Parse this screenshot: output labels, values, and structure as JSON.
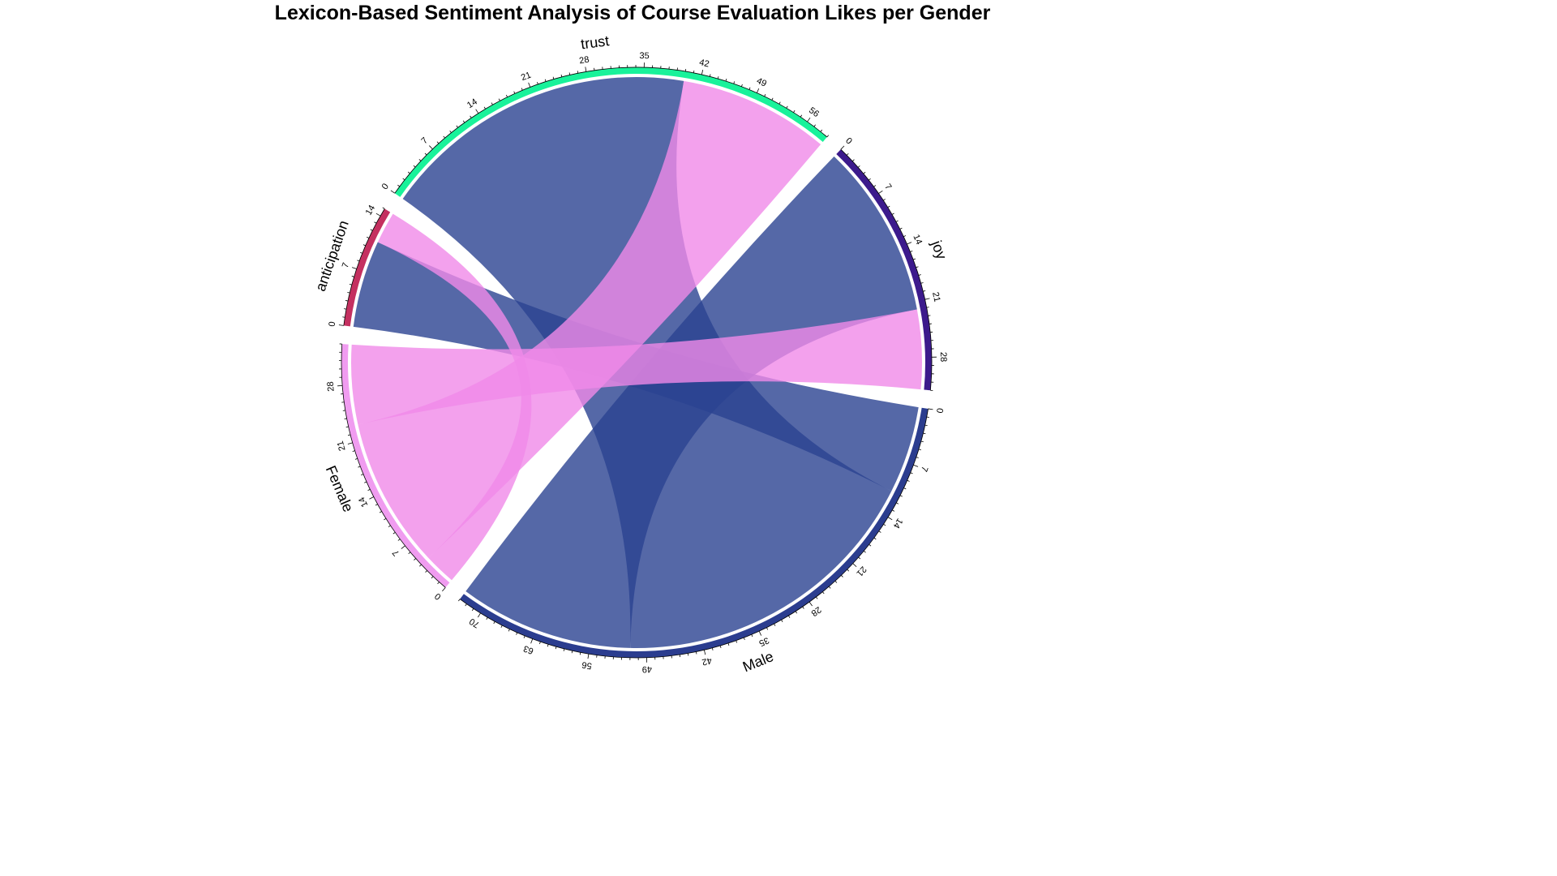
{
  "chart_data": {
    "type": "chord",
    "title": "Lexicon-Based Sentiment Analysis of Course Evaluation Likes per Gender",
    "sectors": [
      {
        "name": "Male",
        "total": 73,
        "color": "#2b3d8f",
        "tick_step": 7
      },
      {
        "name": "Female",
        "total": 33,
        "color": "#f09cf0",
        "tick_step": 7
      },
      {
        "name": "anticipation",
        "total": 15,
        "color": "#c43060",
        "tick_step": 7
      },
      {
        "name": "trust",
        "total": 59,
        "color": "#19f29a",
        "tick_step": 7
      },
      {
        "name": "joy",
        "total": 32,
        "color": "#3c1a8c",
        "tick_step": 7
      }
    ],
    "links": [
      {
        "from": "Male",
        "to": "anticipation",
        "value": 11,
        "color": "#2b4291"
      },
      {
        "from": "Male",
        "to": "trust",
        "value": 40,
        "color": "#2b4291"
      },
      {
        "from": "Male",
        "to": "joy",
        "value": 22,
        "color": "#2b4291"
      },
      {
        "from": "Female",
        "to": "anticipation",
        "value": 4,
        "color": "#f08ae8"
      },
      {
        "from": "Female",
        "to": "trust",
        "value": 19,
        "color": "#f08ae8"
      },
      {
        "from": "Female",
        "to": "joy",
        "value": 10,
        "color": "#f08ae8"
      }
    ]
  }
}
